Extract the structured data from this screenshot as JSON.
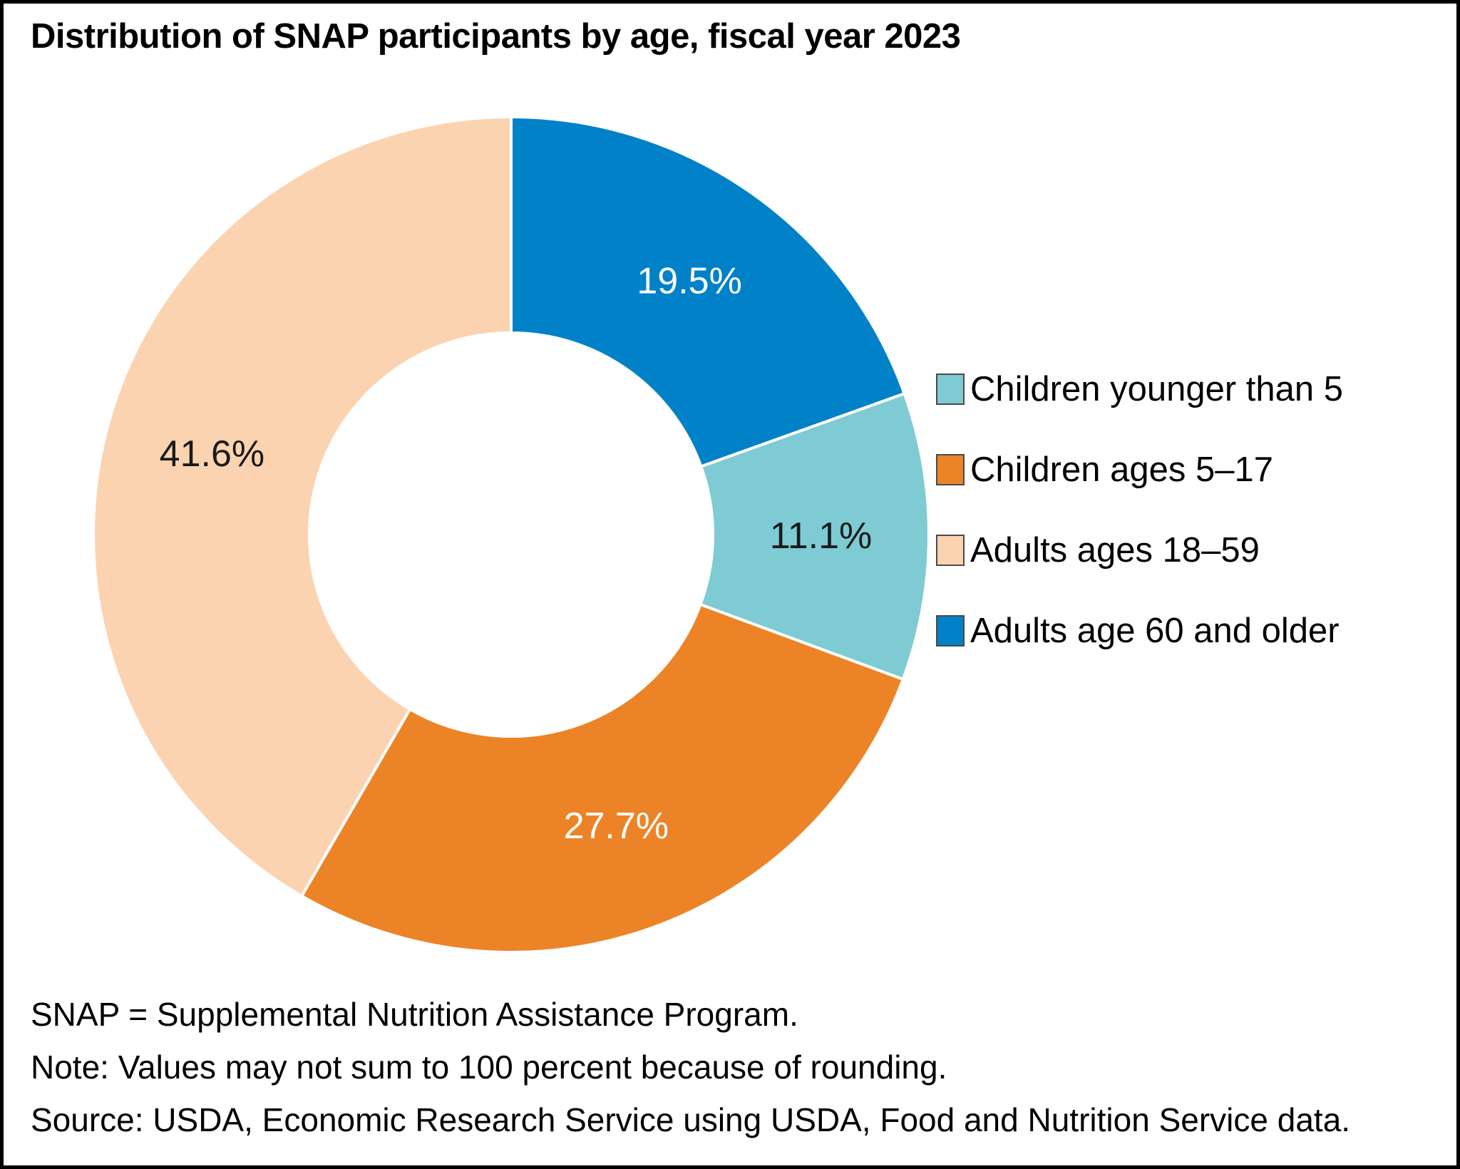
{
  "title": "Distribution of SNAP participants by age, fiscal year 2023",
  "chart_data": {
    "type": "pie",
    "subtype": "donut",
    "title": "Distribution of SNAP participants by age, fiscal year 2023",
    "unit": "percent",
    "segments": [
      {
        "label": "Children younger than 5",
        "value": 11.1,
        "display": "11.1%",
        "color": "#7ECBD4",
        "label_color": "#1a1a1a"
      },
      {
        "label": "Children ages 5–17",
        "value": 27.7,
        "display": "27.7%",
        "color": "#EC8427",
        "label_color": "#ffffff"
      },
      {
        "label": "Adults ages 18–59",
        "value": 41.6,
        "display": "41.6%",
        "color": "#FCD3B0",
        "label_color": "#1a1a1a"
      },
      {
        "label": "Adults age 60 and older",
        "value": 19.5,
        "display": "19.5%",
        "color": "#0081C8",
        "label_color": "#ffffff"
      }
    ],
    "draw_order": [
      3,
      0,
      1,
      2
    ],
    "start_angle_deg": 0,
    "direction": "clockwise",
    "legend_position": "right",
    "labels_on_slices": true,
    "slice_gap_color": "#ffffff"
  },
  "notes": {
    "line1": "SNAP = Supplemental Nutrition Assistance Program.",
    "line2": "Note: Values may not sum to 100 percent because of rounding.",
    "line3": "Source: USDA, Economic Research Service using USDA, Food and Nutrition Service data."
  }
}
